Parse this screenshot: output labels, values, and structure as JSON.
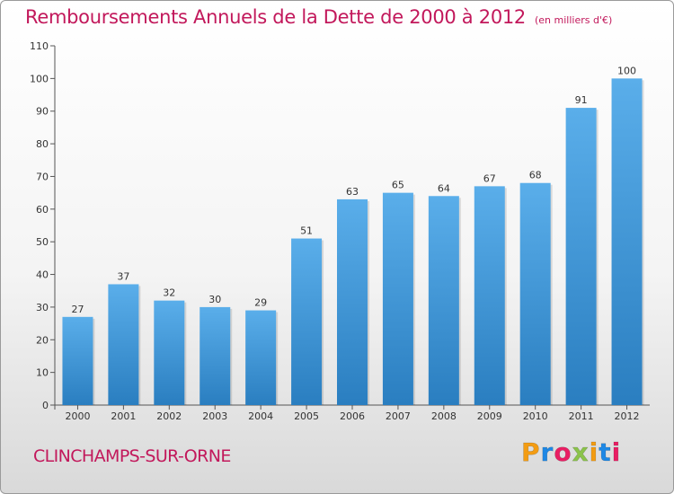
{
  "header": {
    "title": "Remboursements Annuels de la Dette de 2000 à 2012",
    "unit": "(en milliers d'€)"
  },
  "footer": {
    "commune": "CLINCHAMPS-SUR-ORNE",
    "logo_letters": [
      "P",
      "r",
      "o",
      "x",
      "i",
      "t",
      "i"
    ],
    "logo_colors": [
      "#f39c12",
      "#1e88e5",
      "#e91e63",
      "#8bc34a",
      "#f39c12",
      "#1e88e5",
      "#e91e63"
    ]
  },
  "chart_data": {
    "type": "bar",
    "categories": [
      "2000",
      "2001",
      "2002",
      "2003",
      "2004",
      "2005",
      "2006",
      "2007",
      "2008",
      "2009",
      "2010",
      "2011",
      "2012"
    ],
    "values": [
      27,
      37,
      32,
      30,
      29,
      51,
      63,
      65,
      64,
      67,
      68,
      91,
      100
    ],
    "ylim": [
      0,
      110
    ],
    "yticks": [
      0,
      10,
      20,
      30,
      40,
      50,
      60,
      70,
      80,
      90,
      100,
      110
    ],
    "grid": false,
    "legend": "none",
    "bar_color_top": "#5aaeea",
    "bar_color_bottom": "#2a7ec0"
  }
}
